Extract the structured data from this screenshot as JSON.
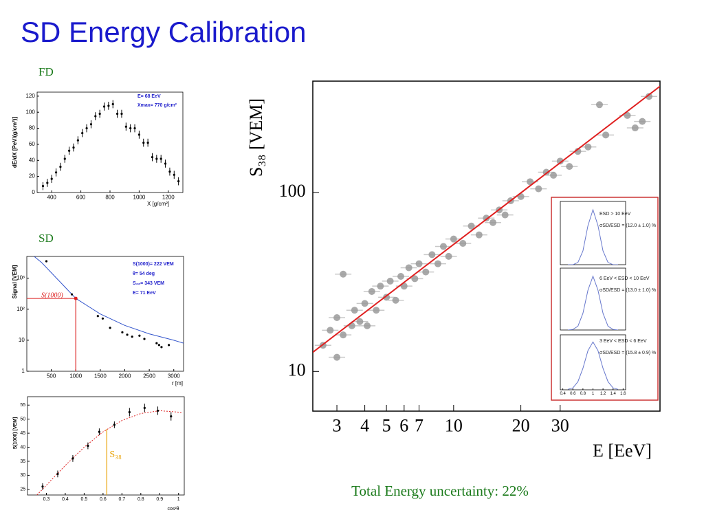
{
  "title": "SD Energy Calibration",
  "fd_label": "FD",
  "sd_label": "SD",
  "footer": "Total Energy uncertainty: 22%",
  "chart_data": [
    {
      "type": "scatter",
      "xlim": [
        300,
        1300
      ],
      "ylim": [
        0,
        125
      ],
      "xticks": [
        400,
        600,
        800,
        1000,
        1200
      ],
      "yticks": [
        0,
        20,
        40,
        60,
        80,
        100,
        120
      ],
      "xlabel": "X [g/cm²]",
      "ylabel": "dE/dX [PeV/(g/cm²)]",
      "annotations": [
        "E= 68 EeV",
        "Xmax= 770 g/cm²"
      ],
      "series": [
        {
          "type": "points",
          "color": "#000000",
          "x": [
            340,
            370,
            400,
            430,
            460,
            490,
            520,
            550,
            580,
            610,
            640,
            670,
            700,
            730,
            760,
            790,
            820,
            850,
            880,
            910,
            940,
            970,
            1000,
            1030,
            1060,
            1090,
            1120,
            1150,
            1180,
            1210,
            1240,
            1270
          ],
          "values": [
            8,
            12,
            17,
            25,
            32,
            42,
            52,
            56,
            65,
            74,
            80,
            85,
            95,
            98,
            107,
            108,
            110,
            98,
            98,
            82,
            80,
            80,
            72,
            62,
            62,
            44,
            42,
            42,
            36,
            26,
            22,
            14
          ],
          "errors": [
            5,
            5,
            5,
            5,
            5,
            5,
            5,
            5,
            5,
            5,
            5,
            5,
            5,
            5,
            5,
            5,
            5,
            5,
            5,
            5,
            5,
            5,
            5,
            5,
            5,
            5,
            5,
            5,
            5,
            5,
            5,
            5
          ]
        }
      ]
    },
    {
      "type": "scatter",
      "xlim": [
        0,
        3200
      ],
      "ylim": [
        1,
        5000
      ],
      "ylog": true,
      "xticks": [
        500,
        1000,
        1500,
        2000,
        2500,
        3000
      ],
      "yticks": [
        1,
        10,
        {
          "value": 100,
          "label": "10²"
        },
        {
          "value": 1000,
          "label": "10³"
        }
      ],
      "xlabel": "r [m]",
      "ylabel": "Signal [VEM]",
      "annotations": [
        "S(1000)= 222 VEM",
        "θ= 54 deg",
        "S₃₈= 343 VEM",
        "E= 71 EeV"
      ],
      "reference": {
        "x": 1000,
        "y": 222,
        "label": "S(1000)",
        "color": "#dd2222"
      },
      "series": [
        {
          "type": "line",
          "color": "#3355cc",
          "x": [
            150,
            300,
            500,
            1000,
            1500,
            2000,
            2500,
            3000,
            3200
          ],
          "values": [
            5000,
            3200,
            1500,
            222,
            70,
            30,
            16,
            10,
            8
          ]
        },
        {
          "type": "points",
          "color": "#000000",
          "x": [
            400,
            920,
            1450,
            1550,
            1700,
            1950,
            2050,
            2150,
            2300,
            2400,
            2650,
            2700,
            2750,
            2900
          ],
          "values": [
            3500,
            300,
            60,
            50,
            25,
            18,
            15,
            13,
            14,
            11,
            8,
            7,
            6,
            7
          ]
        }
      ]
    },
    {
      "type": "scatter",
      "xlim": [
        0.2,
        1.03
      ],
      "ylim": [
        23,
        58
      ],
      "xticks": [
        0.3,
        0.4,
        0.5,
        0.6,
        0.7,
        0.8,
        0.9,
        1
      ],
      "yticks": [
        25,
        30,
        35,
        40,
        45,
        50,
        55
      ],
      "xlabel": "cos²θ",
      "ylabel": "S(1000) [VEM]",
      "annotations": [],
      "reference": {
        "x": 0.62,
        "y": 46.5,
        "label": "S₃₈",
        "color": "#e8a000"
      },
      "series": [
        {
          "type": "line",
          "dashed": true,
          "color": "#dd2222",
          "x": [
            0.25,
            0.3,
            0.4,
            0.5,
            0.6,
            0.7,
            0.8,
            0.9,
            1.0,
            1.02
          ],
          "values": [
            23,
            26.5,
            33.5,
            40,
            45.5,
            49.5,
            52,
            53,
            52.5,
            52.2
          ]
        },
        {
          "type": "points",
          "color": "#000000",
          "x": [
            0.28,
            0.36,
            0.44,
            0.52,
            0.58,
            0.66,
            0.74,
            0.82,
            0.89,
            0.96
          ],
          "values": [
            26,
            30.5,
            36,
            40.5,
            45.5,
            48,
            52.5,
            54,
            53,
            51
          ],
          "errors": [
            1.2,
            1.2,
            1.2,
            1.2,
            1.2,
            1.2,
            1.5,
            1.5,
            1.5,
            1.5
          ]
        }
      ]
    },
    {
      "type": "scatter",
      "xlim": [
        2.34,
        84
      ],
      "ylim": [
        6,
        420
      ],
      "xlog": true,
      "ylog": true,
      "xticks": [
        3,
        4,
        5,
        6,
        7,
        10,
        20,
        30
      ],
      "yticks": [
        10,
        100
      ],
      "xlabel": "E [EeV]",
      "ylabel": "S₃₈ [VEM]",
      "annotations": [],
      "series": [
        {
          "type": "points",
          "color": "#9a9a9a",
          "x": [
            2.6,
            2.8,
            3.0,
            3.0,
            3.2,
            3.2,
            3.5,
            3.6,
            3.8,
            4.0,
            4.1,
            4.3,
            4.5,
            4.7,
            5.0,
            5.2,
            5.5,
            5.8,
            6.0,
            6.3,
            6.7,
            7.0,
            7.5,
            8.0,
            8.5,
            9.0,
            9.5,
            10,
            11,
            12,
            13,
            14,
            15,
            16,
            17,
            18,
            20,
            22,
            24,
            26,
            28,
            30,
            33,
            36,
            40,
            45,
            48,
            60,
            65,
            70,
            75
          ],
          "values": [
            14,
            17,
            12,
            20,
            16,
            35,
            18,
            22,
            19,
            24,
            18,
            28,
            22,
            30,
            26,
            32,
            25,
            34,
            30,
            38,
            33,
            40,
            36,
            45,
            40,
            50,
            44,
            55,
            52,
            65,
            58,
            72,
            68,
            80,
            75,
            90,
            95,
            115,
            105,
            130,
            125,
            150,
            140,
            170,
            180,
            310,
            210,
            270,
            230,
            250,
            345
          ]
        },
        {
          "type": "line",
          "color": "#e02020",
          "x": [
            2.34,
            84
          ],
          "values": [
            12.8,
            393
          ]
        }
      ]
    },
    {
      "type": "line",
      "xlim": [
        0.35,
        1.65
      ],
      "ylim": [
        0,
        115
      ],
      "xticks": [],
      "yticks": [],
      "annotations": [
        "ESD > 10 EeV",
        "σSD/ESD = (12.0 ± 1.0) %"
      ],
      "series": [
        {
          "color": "#6677cc",
          "x": [
            0.5,
            0.6,
            0.7,
            0.8,
            0.9,
            1.0,
            1.1,
            1.2,
            1.3,
            1.4,
            1.5
          ],
          "values": [
            0,
            0,
            4,
            25,
            71,
            100,
            71,
            25,
            4,
            0,
            0
          ]
        }
      ]
    },
    {
      "type": "line",
      "xlim": [
        0.35,
        1.65
      ],
      "ylim": [
        0,
        115
      ],
      "xticks": [],
      "yticks": [],
      "annotations": [
        "6 EeV < ESD < 10 EeV",
        "σSD/ESD = (13.0 ± 1.0) %"
      ],
      "series": [
        {
          "color": "#6677cc",
          "x": [
            0.5,
            0.6,
            0.7,
            0.8,
            0.9,
            1.0,
            1.1,
            1.2,
            1.3,
            1.4,
            1.5
          ],
          "values": [
            0,
            1,
            7,
            31,
            74,
            100,
            74,
            31,
            7,
            1,
            0
          ]
        }
      ]
    },
    {
      "type": "line",
      "xlim": [
        0.35,
        1.65
      ],
      "ylim": [
        0,
        115
      ],
      "xticks": [
        0.4,
        0.6,
        0.8,
        1,
        1.2,
        1.4,
        1.6
      ],
      "yticks": [],
      "annotations": [
        "3 EeV < ESD < 6 EeV",
        "σSD/ESD = (15.8 ± 0.9) %"
      ],
      "series": [
        {
          "color": "#6677cc",
          "x": [
            0.5,
            0.6,
            0.7,
            0.8,
            0.9,
            1.0,
            1.1,
            1.2,
            1.3,
            1.4,
            1.5
          ],
          "values": [
            1,
            4,
            17,
            45,
            82,
            100,
            82,
            45,
            17,
            4,
            1
          ]
        }
      ]
    }
  ]
}
